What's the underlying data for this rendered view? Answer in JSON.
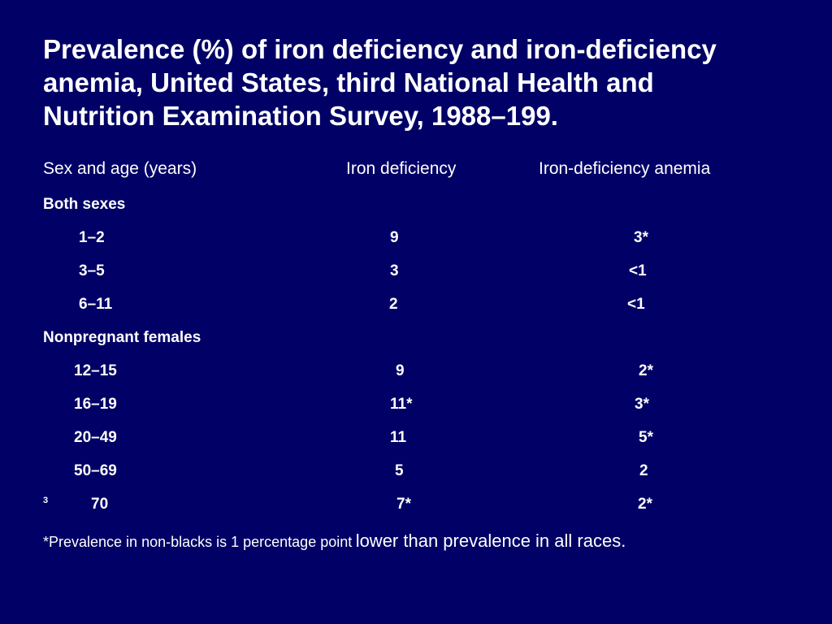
{
  "slide": {
    "title_lines": [
      "Prevalence (%) of iron deficiency and iron-deficiency",
      "anemia, United States, third National Health and",
      "Nutrition Examination Survey, 1988–199."
    ],
    "columns": {
      "age": "Sex and age (years)",
      "iron_deficiency": "Iron deficiency",
      "anemia": "Iron-deficiency anemia"
    },
    "groups": {
      "both": "Both sexes",
      "females": "Nonpregnant females"
    },
    "rows": [
      {
        "age": "1–2",
        "iron": "9",
        "anemia": "3*"
      },
      {
        "age": "3–5",
        "iron": "3",
        "anemia": "<1"
      },
      {
        "age": "6–11",
        "iron": "2",
        "anemia": "<1"
      },
      {
        "age": "12–15",
        "iron": "9",
        "anemia": "2*"
      },
      {
        "age": "16–19",
        "iron": "11*",
        "anemia": "3*"
      },
      {
        "age": "20–49",
        "iron": "11",
        "anemia": "5*"
      },
      {
        "age": "50–69",
        "iron": "5",
        "anemia": "2"
      },
      {
        "age": "70",
        "iron": "7*",
        "anemia": "2*"
      }
    ],
    "last_row_prefix": "3",
    "footnote": {
      "part1": "*Prevalence in non-blacks is 1 percentage point",
      "part2": "lower than prevalence in all races."
    }
  }
}
